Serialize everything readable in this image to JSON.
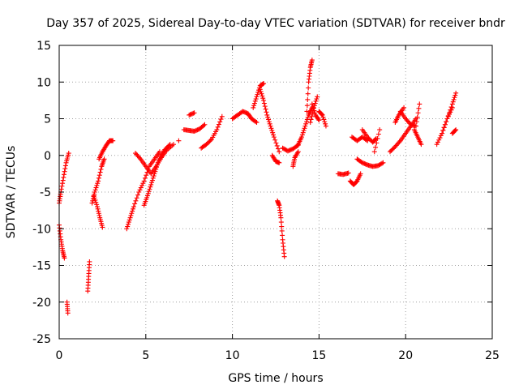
{
  "chart_data": {
    "type": "scatter",
    "title": "Day 357 of 2025, Sidereal Day-to-day VTEC variation (SDTVAR) for receiver bndr",
    "xlabel": "GPS time / hours",
    "ylabel": "SDTVAR / TECUs",
    "xlim": [
      0,
      25
    ],
    "ylim": [
      -25,
      15
    ],
    "xticks": [
      0,
      5,
      10,
      15,
      20,
      25
    ],
    "yticks": [
      -25,
      -20,
      -15,
      -10,
      -5,
      0,
      5,
      10,
      15
    ],
    "grid": true,
    "marker": "+",
    "color": "#ff0000",
    "segments": [
      {
        "x": [
          0.0,
          0.1,
          0.25,
          0.4,
          0.55
        ],
        "y": [
          -6.5,
          -5.0,
          -3.0,
          -1.0,
          0.3
        ]
      },
      {
        "x": [
          0.0,
          0.1,
          0.2,
          0.3
        ],
        "y": [
          -9.5,
          -11.5,
          -13.0,
          -14.0
        ]
      },
      {
        "x": [
          0.45,
          0.5
        ],
        "y": [
          -20.0,
          -21.5
        ]
      },
      {
        "x": [
          1.65,
          1.7,
          1.75
        ],
        "y": [
          -18.5,
          -16.5,
          -14.5
        ]
      },
      {
        "x": [
          1.9,
          2.05,
          2.25,
          2.45,
          2.6
        ],
        "y": [
          -6.5,
          -5.0,
          -3.5,
          -1.5,
          -0.5
        ]
      },
      {
        "x": [
          2.0,
          2.2,
          2.35,
          2.5
        ],
        "y": [
          -5.5,
          -7.0,
          -8.5,
          -9.8
        ]
      },
      {
        "x": [
          2.3,
          2.5,
          2.7,
          2.9,
          3.1
        ],
        "y": [
          -0.5,
          0.5,
          1.3,
          2.0,
          2.0
        ]
      },
      {
        "x": [
          3.9,
          4.1,
          4.3,
          4.6,
          4.9,
          5.2,
          5.5,
          5.8
        ],
        "y": [
          -10.0,
          -8.5,
          -7.0,
          -5.0,
          -3.5,
          -1.5,
          -0.5,
          0.5
        ]
      },
      {
        "x": [
          4.4,
          4.7,
          5.0,
          5.3,
          5.6,
          5.9,
          6.2,
          6.6
        ],
        "y": [
          0.3,
          -0.5,
          -1.5,
          -2.5,
          -1.5,
          -0.3,
          0.7,
          1.5
        ]
      },
      {
        "x": [
          4.9,
          5.1,
          5.3,
          5.5,
          5.7,
          5.9,
          6.1,
          6.4
        ],
        "y": [
          -6.8,
          -5.5,
          -4.0,
          -2.5,
          -1.0,
          0.0,
          0.8,
          1.5
        ]
      },
      {
        "x": [
          6.9
        ],
        "y": [
          2.0
        ]
      },
      {
        "x": [
          7.2,
          7.5,
          7.8,
          8.1,
          8.4
        ],
        "y": [
          3.5,
          3.4,
          3.3,
          3.6,
          4.2
        ]
      },
      {
        "x": [
          7.5,
          7.8
        ],
        "y": [
          5.5,
          5.8
        ]
      },
      {
        "x": [
          8.2,
          8.5,
          8.8,
          9.1,
          9.4
        ],
        "y": [
          1.0,
          1.5,
          2.2,
          3.5,
          5.3
        ]
      },
      {
        "x": [
          10.0,
          10.3,
          10.6,
          10.9,
          11.1,
          11.4
        ],
        "y": [
          5.0,
          5.5,
          6.0,
          5.7,
          5.0,
          4.5
        ]
      },
      {
        "x": [
          11.2,
          11.4,
          11.6,
          11.8
        ],
        "y": [
          6.5,
          8.0,
          9.5,
          9.8
        ]
      },
      {
        "x": [
          11.6,
          11.8,
          12.0,
          12.2,
          12.4,
          12.7
        ],
        "y": [
          9.0,
          7.5,
          5.5,
          4.0,
          2.5,
          0.5
        ]
      },
      {
        "x": [
          12.3,
          12.5,
          12.7
        ],
        "y": [
          0.0,
          -0.8,
          -1.0
        ]
      },
      {
        "x": [
          12.6,
          12.7,
          12.8,
          12.9,
          13.0
        ],
        "y": [
          -6.2,
          -6.8,
          -8.5,
          -11.5,
          -13.8
        ]
      },
      {
        "x": [
          12.9,
          13.2,
          13.5,
          13.8
        ],
        "y": [
          1.0,
          0.6,
          0.9,
          1.4
        ]
      },
      {
        "x": [
          13.5,
          13.6,
          13.8
        ],
        "y": [
          -1.5,
          -0.3,
          0.5
        ]
      },
      {
        "x": [
          13.8,
          14.0,
          14.2,
          14.4,
          14.6
        ],
        "y": [
          1.5,
          2.5,
          4.0,
          5.5,
          6.5
        ]
      },
      {
        "x": [
          14.3,
          14.4,
          14.5,
          14.6
        ],
        "y": [
          6.0,
          10.0,
          12.0,
          13.0
        ]
      },
      {
        "x": [
          14.5,
          14.7,
          14.9
        ],
        "y": [
          4.5,
          6.5,
          8.0
        ]
      },
      {
        "x": [
          14.6,
          14.8,
          15.0
        ],
        "y": [
          7.0,
          5.5,
          4.8
        ]
      },
      {
        "x": [
          15.0,
          15.2,
          15.4
        ],
        "y": [
          6.0,
          5.5,
          4.0
        ]
      },
      {
        "x": [
          16.1,
          16.4,
          16.7
        ],
        "y": [
          -2.5,
          -2.6,
          -2.4
        ]
      },
      {
        "x": [
          16.8,
          17.0,
          17.2,
          17.4
        ],
        "y": [
          -3.5,
          -4.0,
          -3.5,
          -2.5
        ]
      },
      {
        "x": [
          16.9,
          17.2,
          17.5,
          17.8
        ],
        "y": [
          2.5,
          2.0,
          2.5,
          2.0
        ]
      },
      {
        "x": [
          17.2,
          17.5,
          17.8,
          18.1,
          18.4,
          18.7
        ],
        "y": [
          -0.5,
          -1.0,
          -1.3,
          -1.5,
          -1.4,
          -1.0
        ]
      },
      {
        "x": [
          17.5,
          17.8,
          18.1,
          18.3
        ],
        "y": [
          3.5,
          2.5,
          1.8,
          2.3
        ]
      },
      {
        "x": [
          18.2,
          18.5
        ],
        "y": [
          0.5,
          3.5
        ]
      },
      {
        "x": [
          19.1,
          19.4,
          19.7,
          20.0,
          20.3,
          20.6
        ],
        "y": [
          0.5,
          1.2,
          2.0,
          3.0,
          4.0,
          5.0
        ]
      },
      {
        "x": [
          19.4,
          19.6,
          19.9
        ],
        "y": [
          4.5,
          5.5,
          6.5
        ]
      },
      {
        "x": [
          19.7,
          20.0,
          20.3,
          20.6,
          20.8
        ],
        "y": [
          6.0,
          5.0,
          4.2,
          4.0,
          7.0
        ]
      },
      {
        "x": [
          20.5,
          20.7,
          20.9
        ],
        "y": [
          3.5,
          2.5,
          1.5
        ]
      },
      {
        "x": [
          21.8,
          22.1,
          22.4,
          22.7
        ],
        "y": [
          1.5,
          3.0,
          5.0,
          6.5
        ]
      },
      {
        "x": [
          22.1,
          22.4,
          22.7,
          22.9
        ],
        "y": [
          3.0,
          5.0,
          7.0,
          8.5
        ]
      },
      {
        "x": [
          22.7,
          22.9
        ],
        "y": [
          3.0,
          3.5
        ]
      }
    ]
  }
}
